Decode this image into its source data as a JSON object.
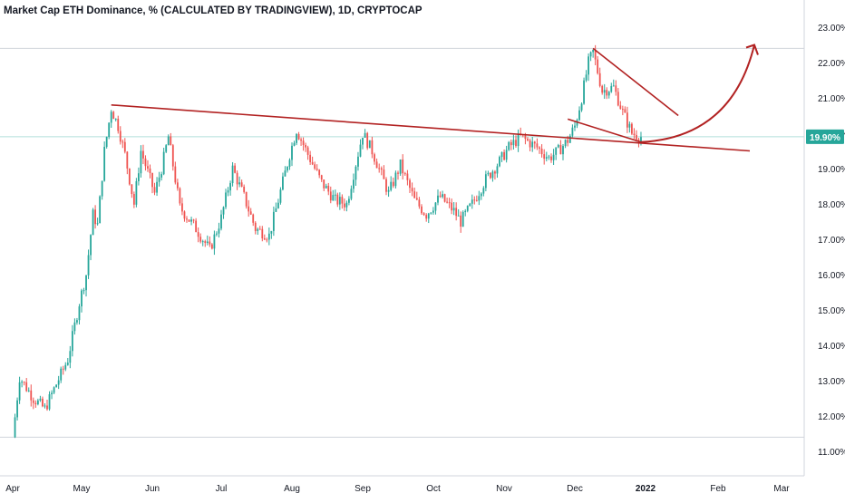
{
  "header": {
    "title": "Market Cap ETH Dominance, % (CALCULATED BY TRADINGVIEW), 1D, CRYPTOCAP"
  },
  "chart_data": {
    "type": "candlestick",
    "title": "Market Cap ETH Dominance, % (CALCULATED BY TRADINGVIEW), 1D, CRYPTOCAP",
    "y_unit": "%",
    "ylim": [
      10.6,
      23.3
    ],
    "y_ticks": [
      "11.00%",
      "12.00%",
      "13.00%",
      "14.00%",
      "15.00%",
      "16.00%",
      "17.00%",
      "18.00%",
      "19.00%",
      "20.00%",
      "21.00%",
      "22.00%",
      "23.00%"
    ],
    "x_ticks": [
      "Apr",
      "May",
      "Jun",
      "Jul",
      "Aug",
      "Sep",
      "Oct",
      "Nov",
      "Dec",
      "2022",
      "Feb",
      "Mar"
    ],
    "current_value": "19.90%",
    "current_value_num": 19.9,
    "horizontal_lines": [
      22.4,
      19.9,
      11.4
    ],
    "colors": {
      "up": "#26a69a",
      "down": "#ef5350",
      "drawing": "#b22222",
      "price_label": "#26a69a",
      "grid_line": "#b2dfdb",
      "axis_text": "#131722"
    },
    "anchors": [
      [
        "Apr 1",
        11.4
      ],
      [
        "Apr 4",
        13.1
      ],
      [
        "Apr 10",
        12.5
      ],
      [
        "Apr 15",
        12.2
      ],
      [
        "Apr 20",
        12.9
      ],
      [
        "Apr 25",
        13.6
      ],
      [
        "Apr 30",
        15.2
      ],
      [
        "May 3",
        16.0
      ],
      [
        "May 6",
        17.7
      ],
      [
        "May 8",
        17.4
      ],
      [
        "May 11",
        19.5
      ],
      [
        "May 14",
        20.7
      ],
      [
        "May 17",
        20.2
      ],
      [
        "May 20",
        19.4
      ],
      [
        "May 24",
        18.0
      ],
      [
        "May 27",
        19.5
      ],
      [
        "Jun 2",
        18.3
      ],
      [
        "Jun 5",
        19.0
      ],
      [
        "Jun 8",
        19.9
      ],
      [
        "Jun 13",
        17.9
      ],
      [
        "Jun 20",
        17.3
      ],
      [
        "Jun 26",
        16.7
      ],
      [
        "Jul 1",
        17.6
      ],
      [
        "Jul 6",
        19.0
      ],
      [
        "Jul 11",
        18.2
      ],
      [
        "Jul 16",
        17.3
      ],
      [
        "Jul 22",
        17.1
      ],
      [
        "Jul 26",
        18.1
      ],
      [
        "Jul 31",
        19.4
      ],
      [
        "Aug 3",
        20.1
      ],
      [
        "Aug 8",
        19.4
      ],
      [
        "Aug 14",
        18.6
      ],
      [
        "Aug 20",
        18.1
      ],
      [
        "Aug 25",
        18.0
      ],
      [
        "Sep 1",
        20.0
      ],
      [
        "Sep 5",
        19.5
      ],
      [
        "Sep 12",
        18.3
      ],
      [
        "Sep 17",
        19.1
      ],
      [
        "Sep 23",
        18.1
      ],
      [
        "Sep 28",
        17.7
      ],
      [
        "Oct 4",
        18.2
      ],
      [
        "Oct 10",
        17.8
      ],
      [
        "Oct 13",
        17.5
      ],
      [
        "Oct 18",
        18.0
      ],
      [
        "Oct 24",
        18.7
      ],
      [
        "Oct 30",
        19.2
      ],
      [
        "Nov 3",
        19.6
      ],
      [
        "Nov 8",
        19.9
      ],
      [
        "Nov 15",
        19.6
      ],
      [
        "Nov 20",
        19.3
      ],
      [
        "Nov 24",
        19.5
      ],
      [
        "Nov 28",
        19.8
      ],
      [
        "Dec 1",
        20.2
      ],
      [
        "Dec 4",
        21.0
      ],
      [
        "Dec 7",
        22.0
      ],
      [
        "Dec 9",
        22.3
      ],
      [
        "Dec 13",
        21.2
      ],
      [
        "Dec 18",
        21.3
      ],
      [
        "Dec 22",
        20.6
      ],
      [
        "Dec 26",
        20.0
      ],
      [
        "Dec 30",
        19.9
      ]
    ],
    "annotations": [
      {
        "type": "trendline",
        "from": [
          "May 14",
          20.8
        ],
        "to": [
          "Feb 15",
          19.5
        ]
      },
      {
        "type": "trendline",
        "from": [
          "Dec 9",
          22.4
        ],
        "to": [
          "Jan 15",
          20.5
        ]
      },
      {
        "type": "trendline",
        "from": [
          "Nov 28",
          20.4
        ],
        "to": [
          "Dec 30",
          19.75
        ]
      },
      {
        "type": "curved-arrow",
        "from": [
          "Dec 30",
          19.75
        ],
        "to": [
          "Feb 17",
          22.5
        ]
      }
    ]
  }
}
